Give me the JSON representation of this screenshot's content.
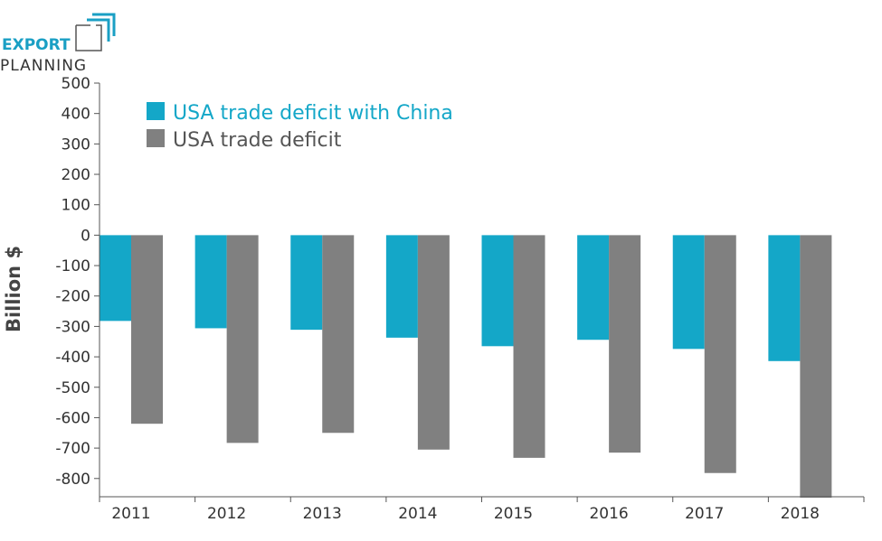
{
  "logo": {
    "line1": "EXPORT",
    "line2": "PLANNING"
  },
  "colors": {
    "china": "#14a7c8",
    "total": "#808080",
    "axis": "#555555",
    "text": "#333333"
  },
  "chart_data": {
    "type": "bar",
    "categories": [
      "2011",
      "2012",
      "2013",
      "2014",
      "2015",
      "2016",
      "2017",
      "2018"
    ],
    "series": [
      {
        "name": "USA trade deficit with China",
        "color": "#14a7c8",
        "values": [
          -282,
          -306,
          -311,
          -337,
          -365,
          -344,
          -374,
          -414
        ]
      },
      {
        "name": "USA trade deficit",
        "color": "#808080",
        "values": [
          -620,
          -683,
          -650,
          -705,
          -732,
          -715,
          -782,
          -863
        ]
      }
    ],
    "ylabel": "Billion $",
    "xlabel": "",
    "ylim": [
      -860,
      500
    ],
    "yticks": [
      500,
      400,
      300,
      200,
      100,
      0,
      -100,
      -200,
      -300,
      -400,
      -500,
      -600,
      -700,
      -800
    ],
    "legend": "top-left",
    "grid": false
  }
}
